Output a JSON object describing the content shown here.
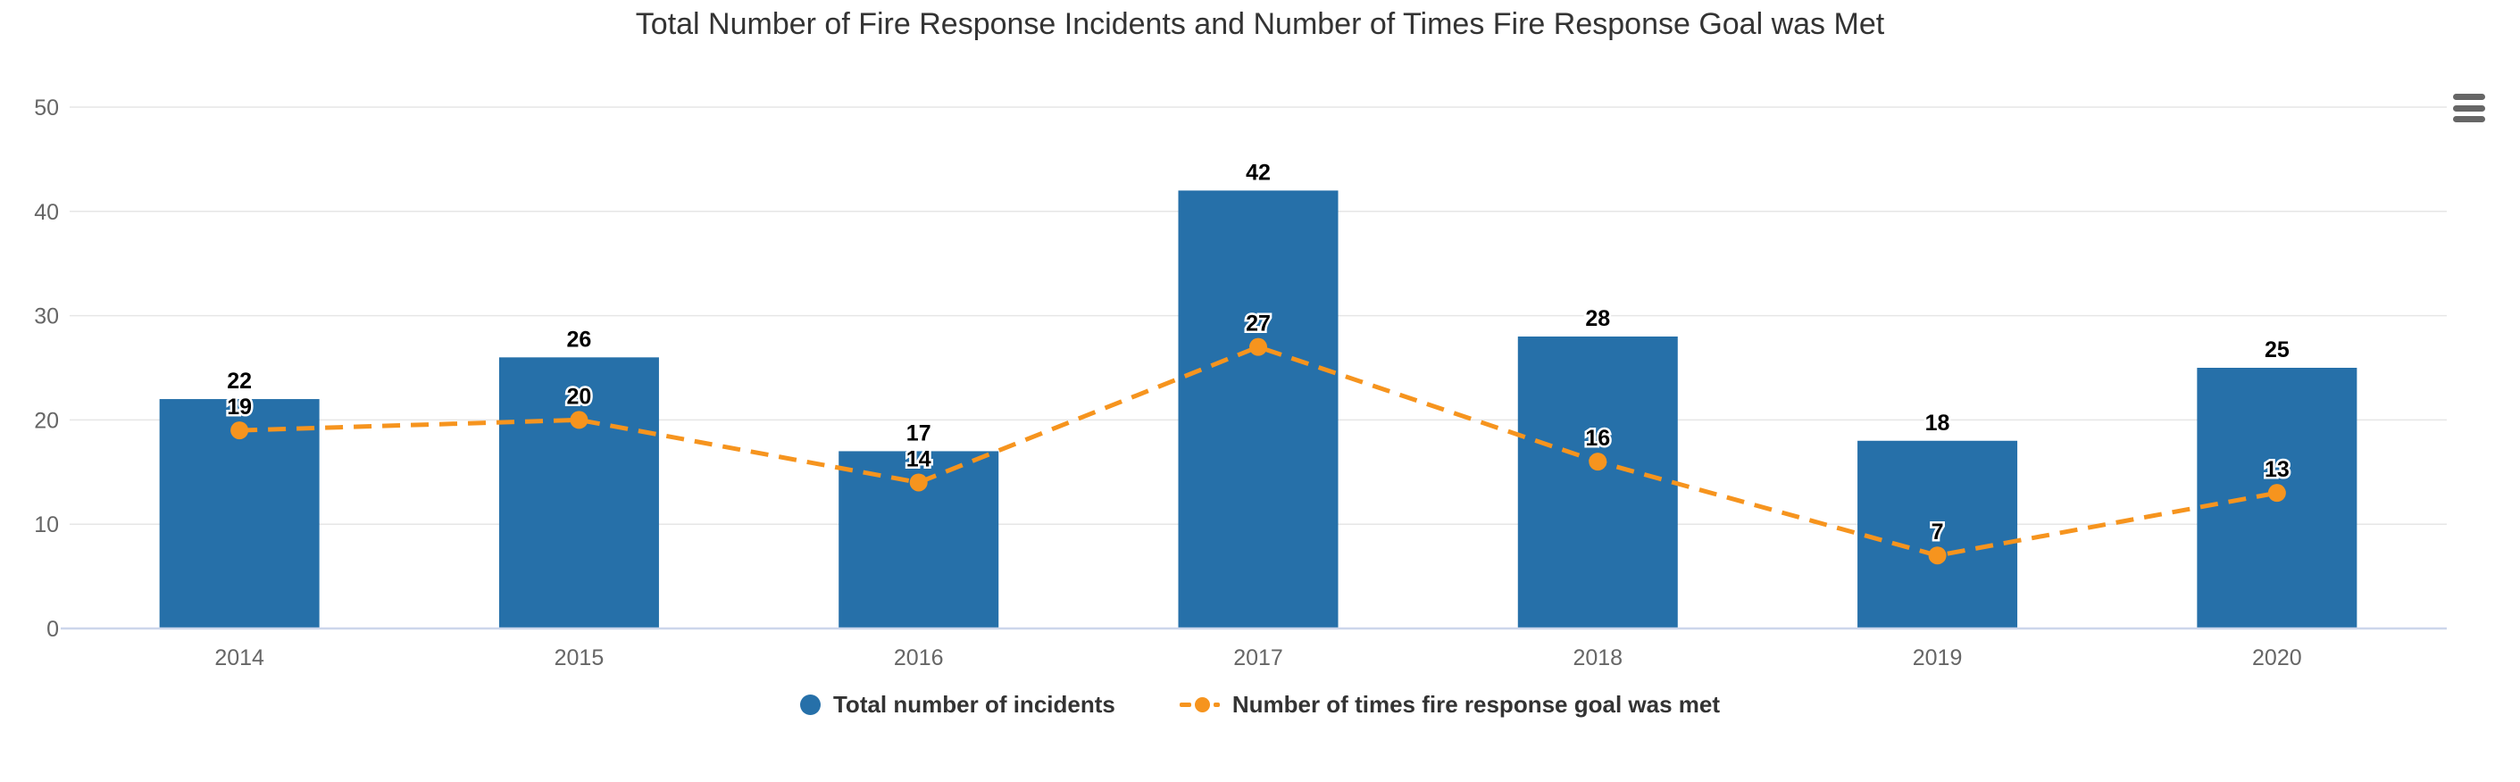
{
  "title": "Total Number of Fire Response Incidents and Number of Times Fire Response Goal was Met",
  "colors": {
    "bar": "#2670a9",
    "line": "#f6941e",
    "grid": "#e6e6e6",
    "axis_line": "#ccd6eb",
    "axis_label": "#666666",
    "title": "#333333",
    "data_label": "#000000",
    "data_label_halo": "#ffffff",
    "menu_icon": "#666666",
    "background": "#ffffff"
  },
  "menu": {
    "icon": "hamburger-icon"
  },
  "chart_data": {
    "type": "bar+line",
    "title": "Total Number of Fire Response Incidents and Number of Times Fire Response Goal was Met",
    "categories": [
      "2014",
      "2015",
      "2016",
      "2017",
      "2018",
      "2019",
      "2020"
    ],
    "series": [
      {
        "name": "Total number of incidents",
        "type": "bar",
        "color": "#2670a9",
        "values": [
          22,
          26,
          17,
          42,
          28,
          18,
          25
        ]
      },
      {
        "name": "Number of times fire response goal was met",
        "type": "line",
        "dash": "dashed",
        "marker": "circle",
        "color": "#f6941e",
        "values": [
          19,
          20,
          14,
          27,
          16,
          7,
          13
        ]
      }
    ],
    "xlabel": "",
    "ylabel": "",
    "yticks": [
      0,
      10,
      20,
      30,
      40,
      50
    ],
    "ylim": [
      0,
      50
    ],
    "grid": true,
    "data_labels": true,
    "legend_position": "bottom"
  }
}
